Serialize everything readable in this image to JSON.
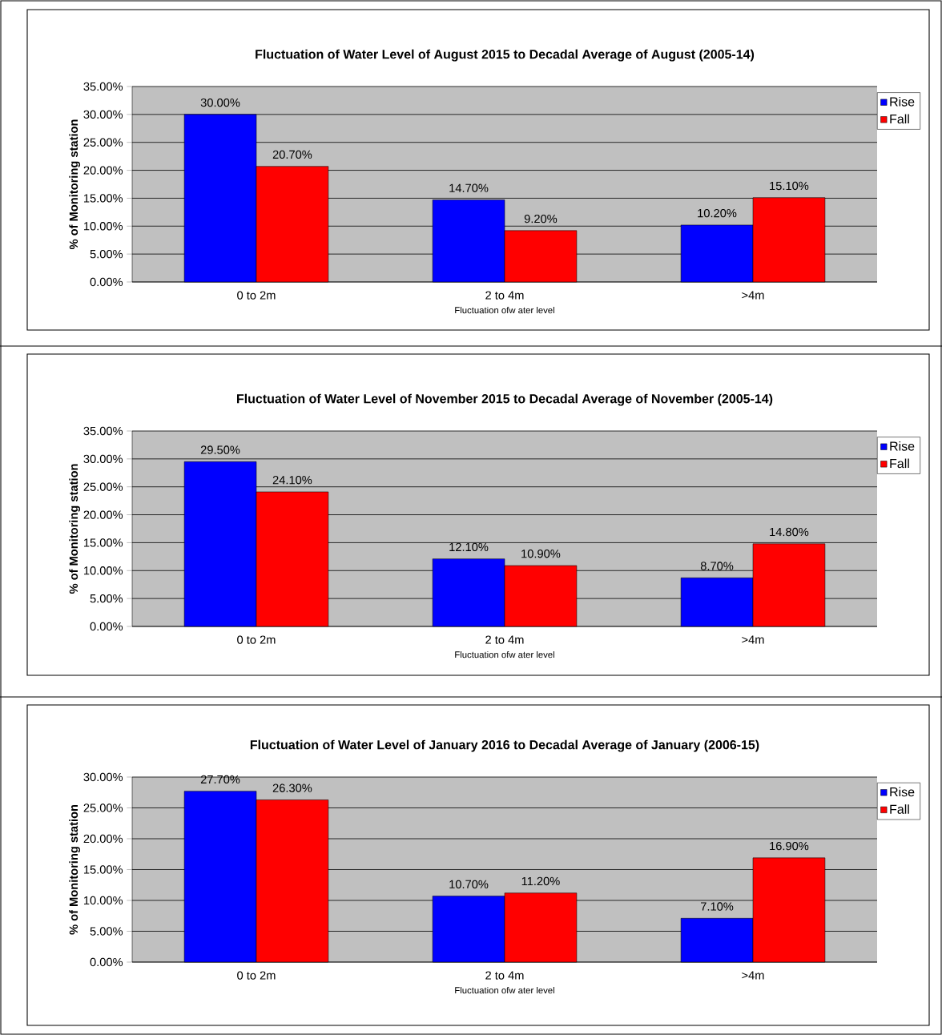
{
  "chart_data": [
    {
      "type": "bar",
      "title": "Fluctuation of Water Level of August 2015 to Decadal Average of August (2005-14)",
      "xlabel": "Fluctuation ofw ater level",
      "ylabel": "% of Monitoring station",
      "categories": [
        "0 to 2m",
        "2 to 4m",
        ">4m"
      ],
      "series": [
        {
          "name": "Rise",
          "color": "#0000ff",
          "values": [
            30.0,
            14.7,
            10.2
          ],
          "value_labels": [
            "30.00%",
            "14.70%",
            "10.20%"
          ]
        },
        {
          "name": "Fall",
          "color": "#ff0000",
          "values": [
            20.7,
            9.2,
            15.1
          ],
          "value_labels": [
            "20.70%",
            "9.20%",
            "15.10%"
          ]
        }
      ],
      "ylim": [
        0,
        35
      ],
      "yticks": [
        {
          "value": 0,
          "label": "0.00%"
        },
        {
          "value": 5,
          "label": "5.00%"
        },
        {
          "value": 10,
          "label": "10.00%"
        },
        {
          "value": 15,
          "label": "15.00%"
        },
        {
          "value": 20,
          "label": "20.00%"
        },
        {
          "value": 25,
          "label": "25.00%"
        },
        {
          "value": 30,
          "label": "30.00%"
        },
        {
          "value": 35,
          "label": "35.00%"
        }
      ],
      "grid": "y",
      "legend": "right"
    },
    {
      "type": "bar",
      "title": "Fluctuation of Water Level of November 2015 to Decadal Average of November (2005-14)",
      "xlabel": "Fluctuation ofw ater level",
      "ylabel": "% of Monitoring station",
      "categories": [
        "0 to 2m",
        "2 to 4m",
        ">4m"
      ],
      "series": [
        {
          "name": "Rise",
          "color": "#0000ff",
          "values": [
            29.5,
            12.1,
            8.7
          ],
          "value_labels": [
            "29.50%",
            "12.10%",
            "8.70%"
          ]
        },
        {
          "name": "Fall",
          "color": "#ff0000",
          "values": [
            24.1,
            10.9,
            14.8
          ],
          "value_labels": [
            "24.10%",
            "10.90%",
            "14.80%"
          ]
        }
      ],
      "ylim": [
        0,
        35
      ],
      "yticks": [
        {
          "value": 0,
          "label": "0.00%"
        },
        {
          "value": 5,
          "label": "5.00%"
        },
        {
          "value": 10,
          "label": "10.00%"
        },
        {
          "value": 15,
          "label": "15.00%"
        },
        {
          "value": 20,
          "label": "20.00%"
        },
        {
          "value": 25,
          "label": "25.00%"
        },
        {
          "value": 30,
          "label": "30.00%"
        },
        {
          "value": 35,
          "label": "35.00%"
        }
      ],
      "grid": "y",
      "legend": "right"
    },
    {
      "type": "bar",
      "title": "Fluctuation of Water Level of January 2016 to Decadal Average of January (2006-15)",
      "xlabel": "Fluctuation ofw ater level",
      "ylabel": "% of Monitoring station",
      "categories": [
        "0 to 2m",
        "2 to 4m",
        ">4m"
      ],
      "series": [
        {
          "name": "Rise",
          "color": "#0000ff",
          "values": [
            27.7,
            10.7,
            7.1
          ],
          "value_labels": [
            "27.70%",
            "10.70%",
            "7.10%"
          ]
        },
        {
          "name": "Fall",
          "color": "#ff0000",
          "values": [
            26.3,
            11.2,
            16.9
          ],
          "value_labels": [
            "26.30%",
            "11.20%",
            "16.90%"
          ]
        }
      ],
      "ylim": [
        0,
        30
      ],
      "yticks": [
        {
          "value": 0,
          "label": "0.00%"
        },
        {
          "value": 5,
          "label": "5.00%"
        },
        {
          "value": 10,
          "label": "10.00%"
        },
        {
          "value": 15,
          "label": "15.00%"
        },
        {
          "value": 20,
          "label": "20.00%"
        },
        {
          "value": 25,
          "label": "25.00%"
        },
        {
          "value": 30,
          "label": "30.00%"
        }
      ],
      "grid": "y",
      "legend": "right"
    }
  ]
}
